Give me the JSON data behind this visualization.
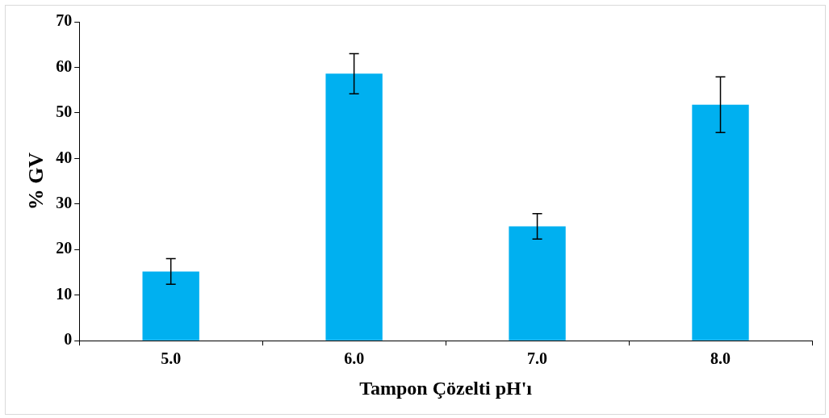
{
  "chart_data": {
    "type": "bar",
    "xlabel": "Tampon Çözelti pH'ı",
    "ylabel": "% GV",
    "categories": [
      "5.0",
      "6.0",
      "7.0",
      "8.0"
    ],
    "series": [
      {
        "color": "#00b0f0",
        "values": [
          15.2,
          58.6,
          25.1,
          51.8
        ],
        "errors": [
          2.8,
          4.4,
          2.8,
          6.1
        ]
      }
    ],
    "ylim": [
      0,
      70
    ],
    "yticks": [
      0,
      10,
      20,
      30,
      40,
      50,
      60,
      70
    ],
    "grid": false,
    "legend": false
  }
}
